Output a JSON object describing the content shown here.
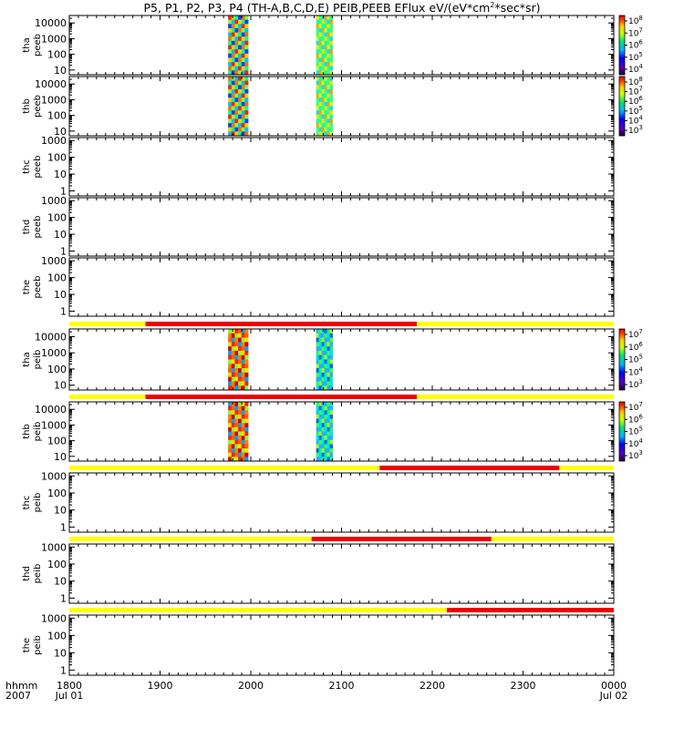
{
  "title_text": "P5, P1, P2, P3, P4 (TH-A,B,C,D,E) PEIB,PEEB EFlux eV/(eV*cm",
  "title_sup": "2",
  "title_tail": "*sec*sr)",
  "chart_data": {
    "type": "heatmap",
    "title": "P5, P1, P2, P3, P4 (TH-A,B,C,D,E) PEIB,PEEB EFlux eV/(eV*cm^2*sec*sr)",
    "x_range": [
      1800,
      2400
    ],
    "x_ticks": [
      {
        "value": 1800,
        "label": "1800",
        "sub": "Jul 01"
      },
      {
        "value": 1900,
        "label": "1900",
        "sub": ""
      },
      {
        "value": 2000,
        "label": "2000",
        "sub": ""
      },
      {
        "value": 2100,
        "label": "2100",
        "sub": ""
      },
      {
        "value": 2200,
        "label": "2200",
        "sub": ""
      },
      {
        "value": 2300,
        "label": "2300",
        "sub": ""
      },
      {
        "value": 2400,
        "label": "0000",
        "sub": "Jul 02"
      }
    ],
    "x_axis_label": [
      "hhmm",
      "2007"
    ],
    "panels": [
      {
        "probe": "tha",
        "product": "peeb",
        "yticks": [
          "10000",
          "1000",
          "100",
          "10"
        ],
        "ylim": [
          5,
          30000
        ],
        "colorbar": {
          "labels": [
            [
              "10",
              "8"
            ],
            [
              "10",
              "7"
            ],
            [
              "10",
              "6"
            ],
            [
              "10",
              "5"
            ],
            [
              "10",
              "4"
            ]
          ]
        },
        "bursts": [
          {
            "start": 1975,
            "end": 1997
          },
          {
            "start": 2072,
            "end": 2090
          }
        ],
        "status_bar": null
      },
      {
        "probe": "thb",
        "product": "peeb",
        "yticks": [
          "10000",
          "1000",
          "100",
          "10"
        ],
        "ylim": [
          5,
          30000
        ],
        "colorbar": {
          "labels": [
            [
              "10",
              "8"
            ],
            [
              "10",
              "7"
            ],
            [
              "10",
              "6"
            ],
            [
              "10",
              "5"
            ],
            [
              "10",
              "4"
            ],
            [
              "10",
              "3"
            ]
          ]
        },
        "bursts": [
          {
            "start": 1975,
            "end": 1997
          },
          {
            "start": 2072,
            "end": 2090
          }
        ],
        "status_bar": null
      },
      {
        "probe": "thc",
        "product": "peeb",
        "yticks": [
          "1000",
          "100",
          "10",
          "1"
        ],
        "ylim": [
          0.5,
          1500
        ],
        "colorbar": null,
        "bursts": [],
        "status_bar": null
      },
      {
        "probe": "thd",
        "product": "peeb",
        "yticks": [
          "1000",
          "100",
          "10",
          "1"
        ],
        "ylim": [
          0.5,
          1500
        ],
        "colorbar": null,
        "bursts": [],
        "status_bar": null
      },
      {
        "probe": "the",
        "product": "peeb",
        "yticks": [
          "1000",
          "100",
          "10",
          "1"
        ],
        "ylim": [
          0.5,
          1500
        ],
        "colorbar": null,
        "bursts": [],
        "status_bar": null
      },
      {
        "probe": "tha",
        "product": "peib",
        "yticks": [
          "10000",
          "1000",
          "100",
          "10"
        ],
        "ylim": [
          5,
          30000
        ],
        "colorbar": {
          "labels": [
            [
              "10",
              "7"
            ],
            [
              "10",
              "6"
            ],
            [
              "10",
              "5"
            ],
            [
              "10",
              "4"
            ],
            [
              "10",
              "3"
            ]
          ]
        },
        "bursts": [
          {
            "start": 1975,
            "end": 1997
          },
          {
            "start": 2072,
            "end": 2090
          }
        ],
        "status_bar": {
          "red_start": 1884,
          "red_end": 2183
        }
      },
      {
        "probe": "thb",
        "product": "peib",
        "yticks": [
          "10000",
          "1000",
          "100",
          "10"
        ],
        "ylim": [
          5,
          30000
        ],
        "colorbar": {
          "labels": [
            [
              "10",
              "7"
            ],
            [
              "10",
              "6"
            ],
            [
              "10",
              "5"
            ],
            [
              "10",
              "4"
            ],
            [
              "10",
              "3"
            ]
          ]
        },
        "bursts": [
          {
            "start": 1975,
            "end": 1997
          },
          {
            "start": 2072,
            "end": 2090
          }
        ],
        "status_bar": {
          "red_start": 1884,
          "red_end": 2183
        }
      },
      {
        "probe": "thc",
        "product": "peib",
        "yticks": [
          "1000",
          "100",
          "10",
          "1"
        ],
        "ylim": [
          0.5,
          1500
        ],
        "colorbar": null,
        "bursts": [],
        "status_bar": {
          "red_start": 2142,
          "red_end": 2340
        }
      },
      {
        "probe": "thd",
        "product": "peib",
        "yticks": [
          "1000",
          "100",
          "10",
          "1"
        ],
        "ylim": [
          0.5,
          1500
        ],
        "colorbar": null,
        "bursts": [],
        "status_bar": {
          "red_start": 2067,
          "red_end": 2265
        }
      },
      {
        "probe": "the",
        "product": "peib",
        "yticks": [
          "1000",
          "100",
          "10",
          "1"
        ],
        "ylim": [
          0.5,
          1500
        ],
        "colorbar": null,
        "bursts": [],
        "status_bar": {
          "red_start": 2216,
          "red_end": 2400
        }
      }
    ],
    "status_bar_colors": {
      "on": "#ffff00",
      "off": "#ee0000"
    }
  }
}
